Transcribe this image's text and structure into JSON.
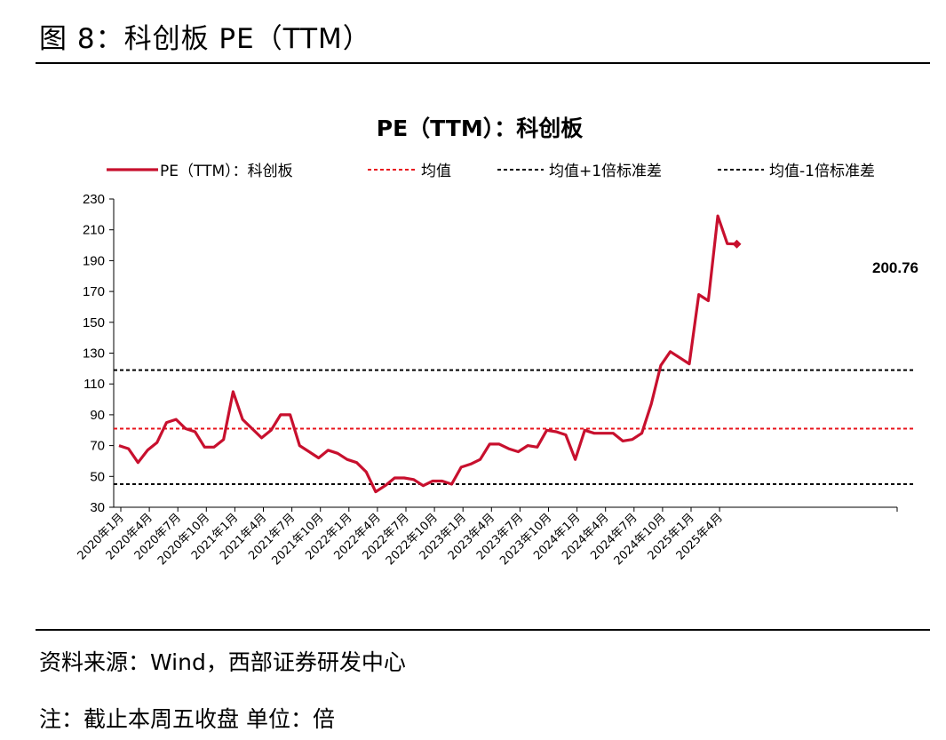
{
  "figure_title": "图 8：科创板 PE（TTM）",
  "source": "资料来源：Wind，西部证券研发中心",
  "note": "注：截止本周五收盘 单位：倍",
  "colors": {
    "series": "#c8102e",
    "mean": "#e8141c",
    "band": "#000000",
    "axis": "#000000"
  },
  "chart_data": {
    "type": "line",
    "title": "PE（TTM）：科创板",
    "legend": [
      {
        "label": "PE（TTM）：科创板",
        "style": "solid",
        "color": "#c8102e"
      },
      {
        "label": "均值",
        "style": "dashed",
        "color": "#e8141c"
      },
      {
        "label": "均值+1倍标准差",
        "style": "dashed",
        "color": "#000000"
      },
      {
        "label": "均值-1倍标准差",
        "style": "dashed",
        "color": "#000000"
      }
    ],
    "legend_position": "top",
    "ylim": [
      30,
      230
    ],
    "yticks": [
      30,
      50,
      70,
      90,
      110,
      130,
      150,
      170,
      190,
      210,
      230
    ],
    "xticks": [
      "2020年1月",
      "2020年4月",
      "2020年7月",
      "2020年10月",
      "2021年1月",
      "2021年4月",
      "2021年7月",
      "2021年10月",
      "2022年1月",
      "2022年4月",
      "2022年7月",
      "2022年10月",
      "2023年1月",
      "2023年4月",
      "2023年7月",
      "2023年10月",
      "2024年1月",
      "2024年4月",
      "2024年7月",
      "2024年10月",
      "2025年1月",
      "2025年4月"
    ],
    "x": [
      "2020-01",
      "2020-02",
      "2020-03",
      "2020-04",
      "2020-05",
      "2020-06",
      "2020-07",
      "2020-08",
      "2020-09",
      "2020-10",
      "2020-11",
      "2020-12",
      "2021-01",
      "2021-02",
      "2021-03",
      "2021-04",
      "2021-05",
      "2021-06",
      "2021-07",
      "2021-08",
      "2021-09",
      "2021-10",
      "2021-11",
      "2021-12",
      "2022-01",
      "2022-02",
      "2022-03",
      "2022-04",
      "2022-05",
      "2022-06",
      "2022-07",
      "2022-08",
      "2022-09",
      "2022-10",
      "2022-11",
      "2022-12",
      "2023-01",
      "2023-02",
      "2023-03",
      "2023-04",
      "2023-05",
      "2023-06",
      "2023-07",
      "2023-08",
      "2023-09",
      "2023-10",
      "2023-11",
      "2023-12",
      "2024-01",
      "2024-02",
      "2024-03",
      "2024-04",
      "2024-05",
      "2024-06",
      "2024-07",
      "2024-08",
      "2024-09",
      "2024-10",
      "2024-11",
      "2024-12",
      "2025-01",
      "2025-02",
      "2025-03",
      "2025-04",
      "2025-05",
      "2025-06"
    ],
    "series": [
      {
        "name": "PE（TTM）：科创板",
        "values": [
          70,
          68,
          59,
          67,
          72,
          85,
          87,
          81,
          79,
          69,
          69,
          74,
          105,
          87,
          81,
          75,
          80,
          90,
          90,
          70,
          66,
          62,
          67,
          65,
          61,
          59,
          53,
          40,
          44,
          49,
          49,
          48,
          44,
          47,
          47,
          45,
          56,
          58,
          61,
          71,
          71,
          68,
          66,
          70,
          69,
          80,
          79,
          77,
          61,
          80,
          78,
          78,
          78,
          73,
          74,
          78,
          97,
          122,
          131,
          127,
          123,
          168,
          164,
          219,
          201,
          200.76
        ]
      }
    ],
    "reference_lines": [
      {
        "name": "均值",
        "value": 81
      },
      {
        "name": "均值+1倍标准差",
        "value": 119
      },
      {
        "name": "均值-1倍标准差",
        "value": 45
      }
    ],
    "annotations": [
      {
        "text": "200.76"
      }
    ],
    "grid": false
  }
}
